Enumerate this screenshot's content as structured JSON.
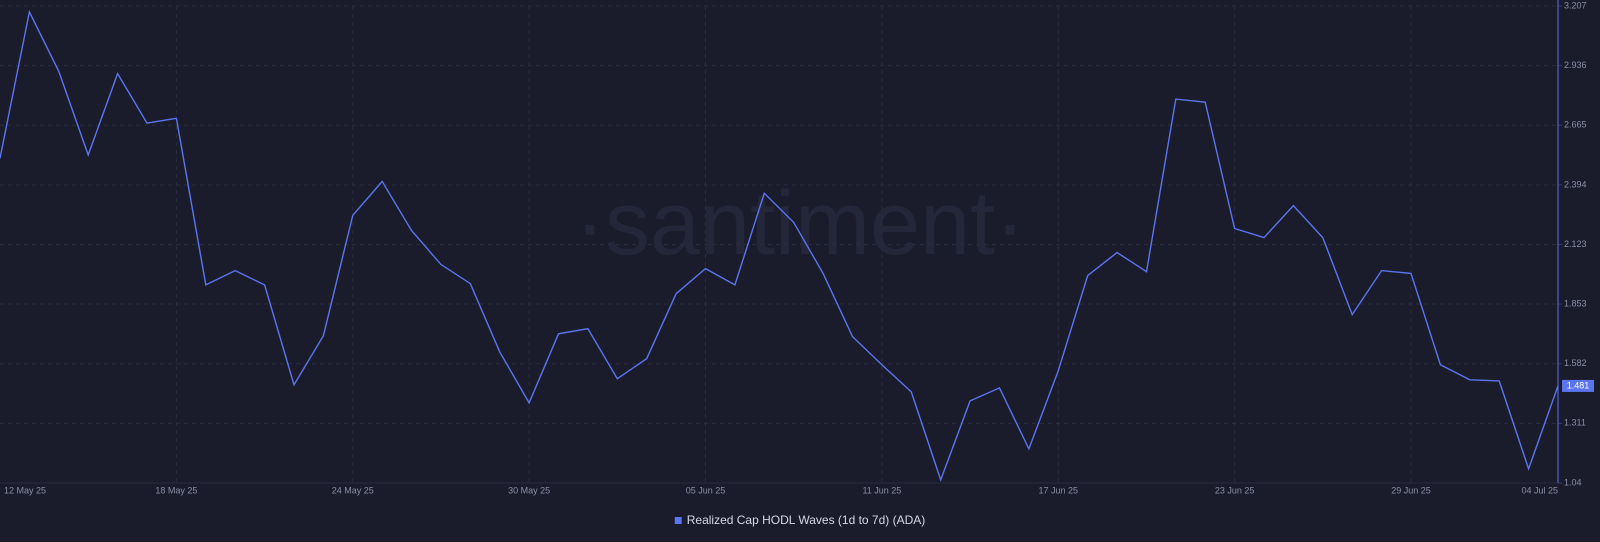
{
  "chart_data": {
    "type": "line",
    "watermark": "·santiment·",
    "categories": [
      "12 May 25",
      null,
      null,
      null,
      null,
      null,
      "18 May 25",
      null,
      null,
      null,
      null,
      null,
      "24 May 25",
      null,
      null,
      null,
      null,
      null,
      "30 May 25",
      null,
      null,
      null,
      null,
      null,
      "05 Jun 25",
      null,
      null,
      null,
      null,
      null,
      "11 Jun 25",
      null,
      null,
      null,
      null,
      null,
      "17 Jun 25",
      null,
      null,
      null,
      null,
      null,
      "23 Jun 25",
      null,
      null,
      null,
      null,
      null,
      "29 Jun 25",
      null,
      null,
      null,
      null,
      "04 Jul 25"
    ],
    "series": [
      {
        "name": "Realized Cap HODL Waves (1d to 7d) (ADA)",
        "color": "#5b74f0",
        "values": [
          2.515,
          3.18,
          2.91,
          2.53,
          2.9,
          2.675,
          2.697,
          1.94,
          2.005,
          1.94,
          1.486,
          1.709,
          2.256,
          2.41,
          2.187,
          2.033,
          1.946,
          1.636,
          1.404,
          1.718,
          1.741,
          1.514,
          1.605,
          1.9,
          2.014,
          1.94,
          2.356,
          2.224,
          1.992,
          1.705,
          1.577,
          1.454,
          1.054,
          1.413,
          1.472,
          1.195,
          1.55,
          1.982,
          2.087,
          2.0,
          2.784,
          2.77,
          2.196,
          2.155,
          2.3,
          2.155,
          1.805,
          2.005,
          1.992,
          1.577,
          1.509,
          1.504,
          1.104,
          1.481
        ]
      }
    ],
    "ylim": [
      1.04,
      3.207
    ],
    "yticks": [
      1.04,
      1.311,
      1.582,
      1.853,
      2.123,
      2.394,
      2.665,
      2.936,
      3.207
    ],
    "grid": true,
    "legend": "bottom"
  }
}
